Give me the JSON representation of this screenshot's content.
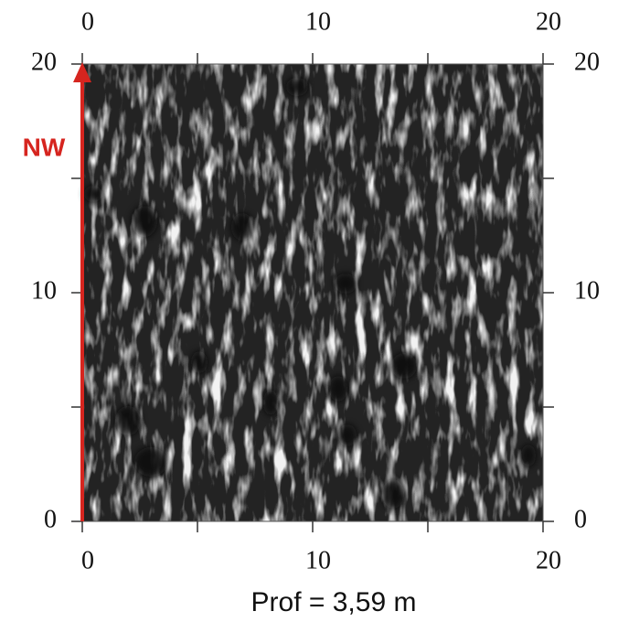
{
  "chart_data": {
    "type": "image",
    "xlabel": "Prof = 3,59 m",
    "annotation": "NW",
    "arrow_color": "#d6251f",
    "xlim": [
      0,
      20
    ],
    "ylim": [
      0,
      20
    ],
    "xticks": [
      0,
      10,
      20
    ],
    "yticks": [
      0,
      10,
      20
    ],
    "minor_xticks": [
      5,
      15
    ],
    "minor_yticks": [
      5,
      15
    ]
  }
}
